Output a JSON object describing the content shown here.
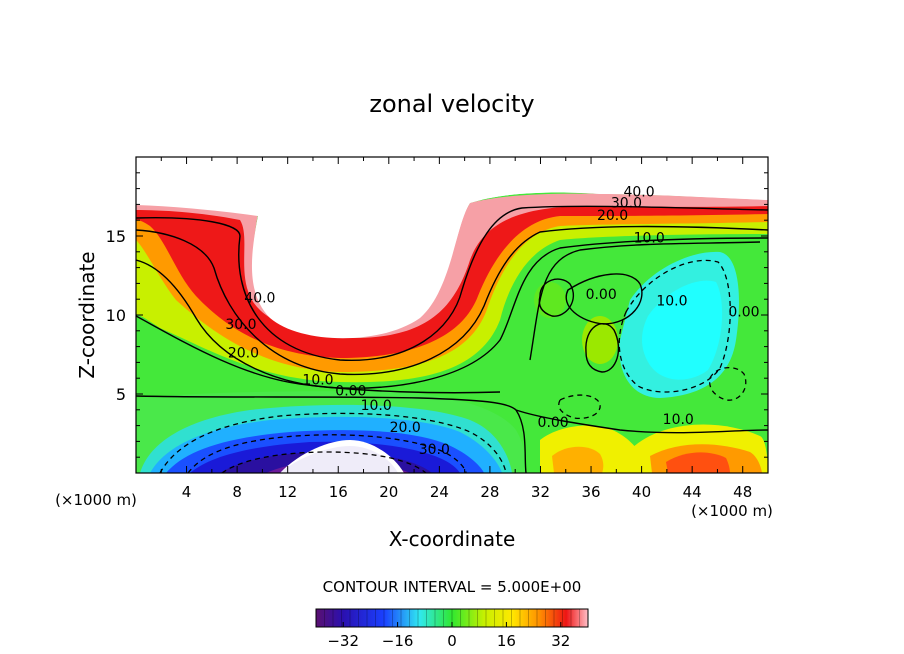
{
  "chart_data": {
    "type": "heatmap",
    "subtype": "filled-contour",
    "title": "zonal velocity",
    "xlabel": "X-coordinate",
    "ylabel": "Z-coordinate",
    "x_unit_label": "(×1000 m)",
    "y_unit_label": "(×1000 m)",
    "xlim": [
      0,
      50
    ],
    "ylim": [
      0,
      20
    ],
    "x_ticks": [
      4,
      8,
      12,
      16,
      20,
      24,
      28,
      32,
      36,
      40,
      44,
      48
    ],
    "y_ticks": [
      5,
      10,
      15
    ],
    "contour_interval_text": "CONTOUR INTERVAL = 5.000E+00",
    "colorbar": {
      "min": -40,
      "max": 40,
      "ticks": [
        -32,
        -16,
        0,
        16,
        32
      ],
      "tick_labels": [
        "−32",
        "−16",
        "0",
        "16",
        "32"
      ]
    },
    "contour_labels": [
      {
        "text": "40.0",
        "x": 9.8,
        "z": 10.8
      },
      {
        "text": "30.0",
        "x": 8.3,
        "z": 9.1
      },
      {
        "text": "20.0",
        "x": 8.5,
        "z": 7.3
      },
      {
        "text": "10.0",
        "x": 14.4,
        "z": 5.6
      },
      {
        "text": "0.00",
        "x": 17.0,
        "z": 4.9
      },
      {
        "text": "10.0",
        "x": 19.0,
        "z": 4.0
      },
      {
        "text": "20.0",
        "x": 21.3,
        "z": 2.6
      },
      {
        "text": "30.0",
        "x": 23.6,
        "z": 1.2
      },
      {
        "text": "0.00",
        "x": 33.0,
        "z": 2.9
      },
      {
        "text": "10.0",
        "x": 42.9,
        "z": 3.1
      },
      {
        "text": "40.0",
        "x": 39.8,
        "z": 17.5
      },
      {
        "text": "30.0",
        "x": 38.8,
        "z": 16.8
      },
      {
        "text": "20.0",
        "x": 37.7,
        "z": 16.0
      },
      {
        "text": "10.0",
        "x": 40.6,
        "z": 14.6
      },
      {
        "text": "0.00",
        "x": 36.8,
        "z": 11.0
      },
      {
        "text": "10.0",
        "x": 42.4,
        "z": 10.6
      },
      {
        "text": "0.00",
        "x": 48.1,
        "z": 9.9
      }
    ],
    "colors": {
      "purple": "#6a1a9a",
      "blue": "#1a2bdc",
      "cyan": "#33f0f0",
      "green": "#33e833",
      "yellow": "#f5f000",
      "orange": "#ff9a00",
      "red": "#ee1515",
      "pink": "#f6a0a6"
    }
  }
}
